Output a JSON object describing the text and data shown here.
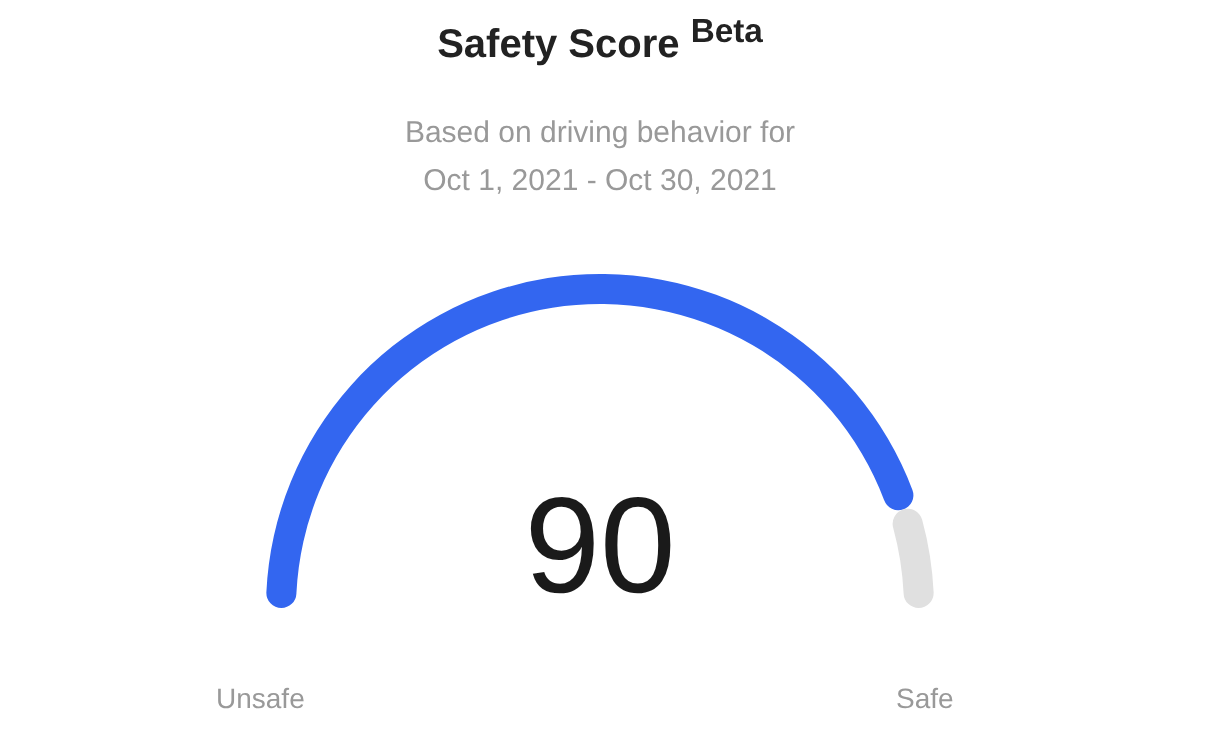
{
  "chart_data": {
    "type": "donut",
    "title": "Safety Score $^{Beta}$",
    "subtitle": "Based on driving behavior for\nOct 1, 2021 - Oct 30, 2021",
    "categories": [
      null,
      null
    ],
    "values": [
      90,
      10
    ],
    "colors": [
      "#3366f0",
      "#e0e0e0"
    ],
    "value_labels": [
      "90",
      null
    ],
    "annotations": [
      "Unsafe",
      "Safe"
    ]
  }
}
